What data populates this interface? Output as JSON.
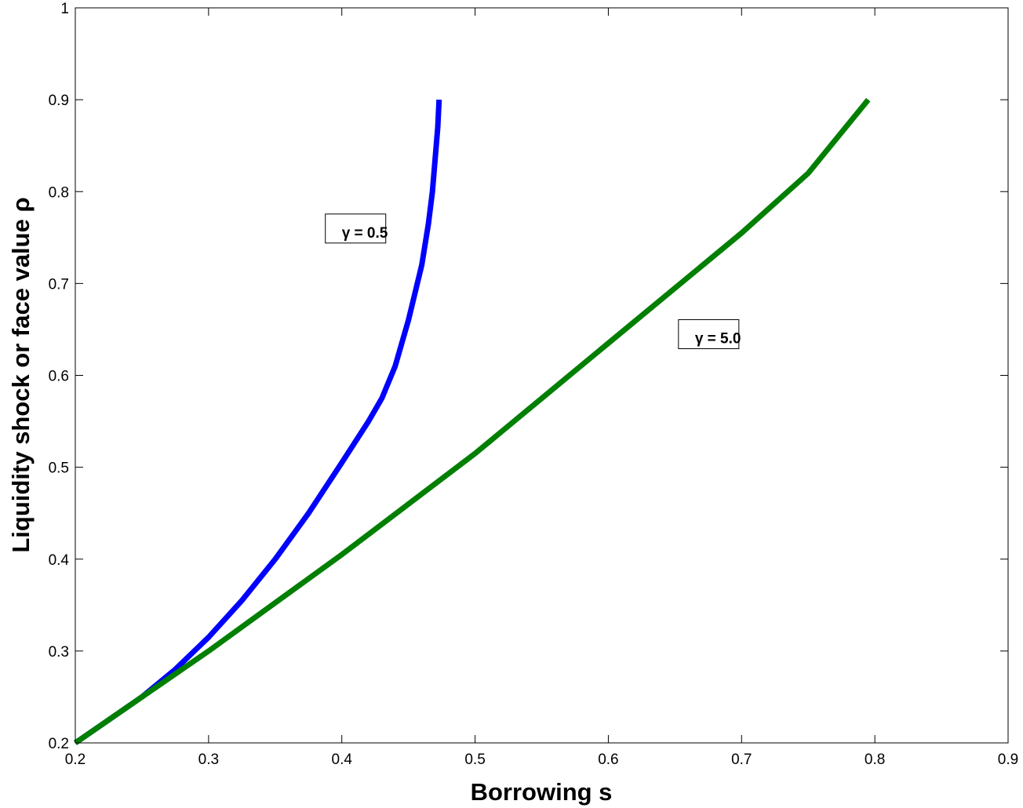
{
  "chart_data": {
    "type": "line",
    "xlabel": "Borrowing s",
    "ylabel": "Liquidity shock or face value ρ",
    "xlim": [
      0.2,
      0.9
    ],
    "ylim": [
      0.2,
      1.0
    ],
    "xticks": [
      "0.2",
      "0.3",
      "0.4",
      "0.5",
      "0.6",
      "0.7",
      "0.8",
      "0.9"
    ],
    "yticks": [
      "0.2",
      "0.3",
      "0.4",
      "0.5",
      "0.6",
      "0.7",
      "0.8",
      "0.9",
      "1"
    ],
    "grid": false,
    "series": [
      {
        "color": "#0000ff",
        "x": [
          0.2,
          0.22,
          0.25,
          0.275,
          0.3,
          0.325,
          0.35,
          0.375,
          0.4,
          0.42,
          0.43,
          0.44,
          0.45,
          0.455,
          0.46,
          0.465,
          0.468,
          0.47,
          0.472,
          0.473
        ],
        "y": [
          0.2,
          0.22,
          0.25,
          0.28,
          0.315,
          0.355,
          0.4,
          0.45,
          0.505,
          0.55,
          0.575,
          0.61,
          0.66,
          0.69,
          0.72,
          0.765,
          0.8,
          0.835,
          0.87,
          0.9
        ]
      },
      {
        "color": "#007f00",
        "x": [
          0.2,
          0.3,
          0.4,
          0.5,
          0.6,
          0.7,
          0.75,
          0.795
        ],
        "y": [
          0.2,
          0.3,
          0.405,
          0.515,
          0.635,
          0.755,
          0.82,
          0.9
        ]
      }
    ],
    "annotations": [
      {
        "text": "γ = 0.5",
        "x": 0.4,
        "y": 0.75
      },
      {
        "text": "γ = 5.0",
        "x": 0.665,
        "y": 0.635
      }
    ]
  }
}
